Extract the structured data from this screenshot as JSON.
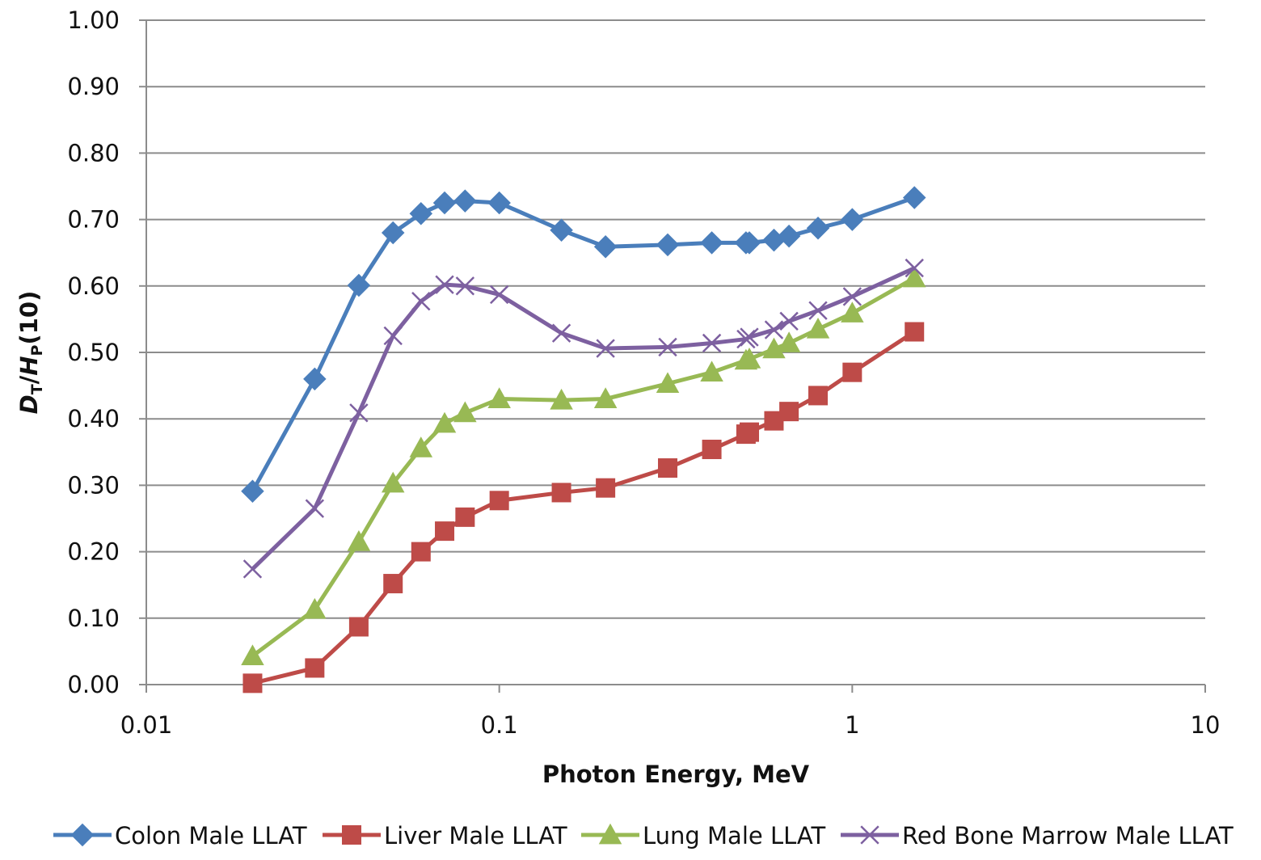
{
  "chart_data": {
    "type": "line",
    "title": "",
    "xlabel": "Photon Energy, MeV",
    "ylabel": {
      "main": "D",
      "sub1": "T",
      "slash": "/",
      "italic2": "H",
      "sub2": "P",
      "tail": "(10)"
    },
    "x_scale": "log",
    "xlim": [
      0.01,
      10
    ],
    "ylim": [
      0,
      1
    ],
    "x_ticks": [
      0.01,
      0.1,
      1,
      10
    ],
    "x_tick_labels": [
      "0.01",
      "0.1",
      "1",
      "10"
    ],
    "y_ticks": [
      0,
      0.1,
      0.2,
      0.3,
      0.4,
      0.5,
      0.6,
      0.7,
      0.8,
      0.9,
      1.0
    ],
    "y_tick_labels": [
      "0.00",
      "0.10",
      "0.20",
      "0.30",
      "0.40",
      "0.50",
      "0.60",
      "0.70",
      "0.80",
      "0.90",
      "1.00"
    ],
    "grid": "horizontal",
    "legend_position": "bottom",
    "x": [
      0.02,
      0.03,
      0.04,
      0.05,
      0.06,
      0.07,
      0.08,
      0.1,
      0.15,
      0.2,
      0.3,
      0.4,
      0.5,
      0.511,
      0.6,
      0.662,
      0.8,
      1.0,
      1.5
    ],
    "series": [
      {
        "name": "Colon Male LLAT",
        "color": "#4a7ebb",
        "marker": "diamond",
        "values": [
          0.291,
          0.46,
          0.601,
          0.68,
          0.709,
          0.725,
          0.728,
          0.725,
          0.684,
          0.659,
          0.662,
          0.665,
          0.665,
          0.665,
          0.669,
          0.675,
          0.687,
          0.7,
          0.733
        ]
      },
      {
        "name": "Liver Male LLAT",
        "color": "#be4b48",
        "marker": "square",
        "values": [
          0.002,
          0.025,
          0.087,
          0.152,
          0.2,
          0.231,
          0.252,
          0.277,
          0.289,
          0.296,
          0.326,
          0.354,
          0.377,
          0.38,
          0.397,
          0.411,
          0.435,
          0.47,
          0.531
        ]
      },
      {
        "name": "Lung Male LLAT",
        "color": "#98b954",
        "marker": "triangle",
        "values": [
          0.043,
          0.113,
          0.215,
          0.303,
          0.356,
          0.393,
          0.409,
          0.43,
          0.428,
          0.43,
          0.453,
          0.47,
          0.488,
          0.49,
          0.505,
          0.514,
          0.535,
          0.559,
          0.612
        ]
      },
      {
        "name": "Red Bone Marrow Male LLAT",
        "color": "#7d60a0",
        "marker": "x",
        "values": [
          0.174,
          0.265,
          0.409,
          0.525,
          0.577,
          0.602,
          0.6,
          0.587,
          0.529,
          0.506,
          0.508,
          0.514,
          0.52,
          0.523,
          0.534,
          0.547,
          0.563,
          0.584,
          0.627
        ]
      }
    ]
  }
}
